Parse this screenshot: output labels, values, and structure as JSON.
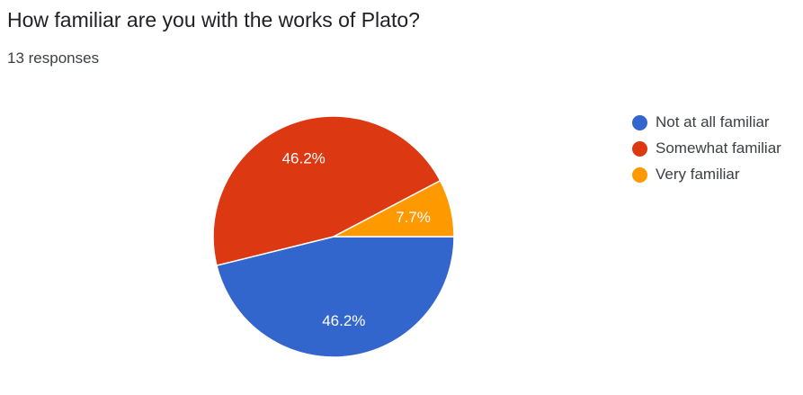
{
  "header": {
    "title": "How familiar are you with the works of Plato?",
    "responses": "13 responses"
  },
  "chart_data": {
    "type": "pie",
    "categories": [
      "Not at all familiar",
      "Somewhat familiar",
      "Very familiar"
    ],
    "values": [
      46.2,
      46.2,
      7.7
    ],
    "data_labels": [
      "46.2%",
      "46.2%",
      "7.7%"
    ],
    "colors": [
      "#3366cc",
      "#dc3912",
      "#ff9900"
    ],
    "legend_position": "right",
    "start_direction": "3 o'clock, clockwise"
  }
}
